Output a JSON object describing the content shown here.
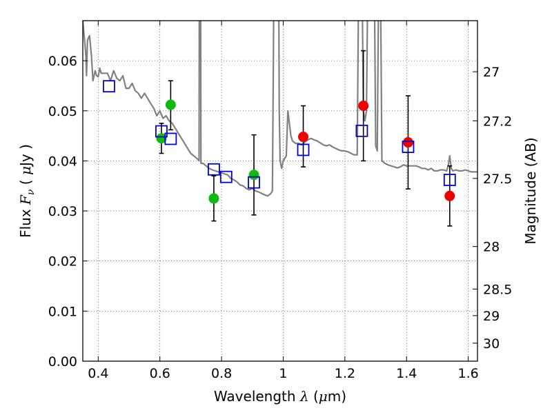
{
  "chart_data": {
    "type": "scatter",
    "xlabel_parts": [
      "Wavelength  ",
      "λ",
      " (",
      "μ",
      "m)"
    ],
    "ylabel_parts": [
      "Flux  ",
      "F",
      "ν",
      "  ( ",
      "μ",
      "Jy )"
    ],
    "y2label": "Magnitude (AB)",
    "xlim": [
      0.35,
      1.63
    ],
    "ylim": [
      0.0,
      0.068
    ],
    "grid": true,
    "x_ticks": [
      0.4,
      0.6,
      0.8,
      1.0,
      1.2,
      1.4,
      1.6
    ],
    "x_tick_labels": [
      "0.4",
      "0.6",
      "0.8",
      "1",
      "1.2",
      "1.4",
      "1.6"
    ],
    "y_ticks": [
      0.0,
      0.01,
      0.02,
      0.03,
      0.04,
      0.05,
      0.06
    ],
    "y_tick_labels": [
      "0.00",
      "0.01",
      "0.02",
      "0.03",
      "0.04",
      "0.05",
      "0.06"
    ],
    "y2_ticks": [
      {
        "flux": 0.0578,
        "label": "27"
      },
      {
        "flux": 0.048,
        "label": "27.2"
      },
      {
        "flux": 0.0365,
        "label": "27.5"
      },
      {
        "flux": 0.0229,
        "label": "28"
      },
      {
        "flux": 0.0144,
        "label": "28.5"
      },
      {
        "flux": 0.0091,
        "label": "29"
      },
      {
        "flux": 0.0036,
        "label": "30"
      }
    ],
    "colors": {
      "model": "#808080",
      "green_points": "#10bb10",
      "red_points": "#ee0000",
      "model_bands": "#0000cc",
      "error_bars": "#000000",
      "grid": "#555555"
    },
    "series": [
      {
        "kind": "line",
        "points": [
          [
            0.35,
            0.068
          ],
          [
            0.36,
            0.061
          ],
          [
            0.362,
            0.057
          ],
          [
            0.365,
            0.064
          ],
          [
            0.368,
            0.0645
          ],
          [
            0.372,
            0.065
          ],
          [
            0.378,
            0.061
          ],
          [
            0.383,
            0.056
          ],
          [
            0.39,
            0.058
          ],
          [
            0.395,
            0.057
          ],
          [
            0.4,
            0.0568
          ],
          [
            0.405,
            0.0585
          ],
          [
            0.41,
            0.0575
          ],
          [
            0.42,
            0.0575
          ],
          [
            0.43,
            0.0575
          ],
          [
            0.44,
            0.056
          ],
          [
            0.45,
            0.058
          ],
          [
            0.46,
            0.0565
          ],
          [
            0.47,
            0.056
          ],
          [
            0.48,
            0.057
          ],
          [
            0.49,
            0.0545
          ],
          [
            0.5,
            0.0545
          ],
          [
            0.51,
            0.0555
          ],
          [
            0.52,
            0.054
          ],
          [
            0.53,
            0.0535
          ],
          [
            0.54,
            0.0525
          ],
          [
            0.55,
            0.0535
          ],
          [
            0.56,
            0.0525
          ],
          [
            0.57,
            0.0515
          ],
          [
            0.58,
            0.0505
          ],
          [
            0.59,
            0.049
          ],
          [
            0.6,
            0.05
          ],
          [
            0.61,
            0.0485
          ],
          [
            0.62,
            0.049
          ],
          [
            0.63,
            0.048
          ],
          [
            0.64,
            0.0475
          ],
          [
            0.65,
            0.0465
          ],
          [
            0.66,
            0.0455
          ],
          [
            0.67,
            0.0445
          ],
          [
            0.68,
            0.0435
          ],
          [
            0.69,
            0.0425
          ],
          [
            0.7,
            0.0415
          ],
          [
            0.71,
            0.041
          ],
          [
            0.72,
            0.0405
          ],
          [
            0.727,
            0.04
          ],
          [
            0.728,
            0.08
          ],
          [
            0.732,
            0.08
          ],
          [
            0.733,
            0.0395
          ],
          [
            0.74,
            0.0395
          ],
          [
            0.75,
            0.039
          ],
          [
            0.76,
            0.0385
          ],
          [
            0.77,
            0.0382
          ],
          [
            0.78,
            0.038
          ],
          [
            0.79,
            0.0378
          ],
          [
            0.8,
            0.0376
          ],
          [
            0.81,
            0.0374
          ],
          [
            0.82,
            0.0372
          ],
          [
            0.83,
            0.0365
          ],
          [
            0.84,
            0.0362
          ],
          [
            0.85,
            0.0358
          ],
          [
            0.86,
            0.0352
          ],
          [
            0.87,
            0.035
          ],
          [
            0.88,
            0.0345
          ],
          [
            0.89,
            0.0342
          ],
          [
            0.9,
            0.0345
          ],
          [
            0.91,
            0.034
          ],
          [
            0.92,
            0.0338
          ],
          [
            0.93,
            0.0335
          ],
          [
            0.94,
            0.0332
          ],
          [
            0.95,
            0.033
          ],
          [
            0.96,
            0.0335
          ],
          [
            0.965,
            0.034
          ],
          [
            0.968,
            0.06
          ],
          [
            0.97,
            0.08
          ],
          [
            0.985,
            0.08
          ],
          [
            0.987,
            0.05
          ],
          [
            0.99,
            0.04
          ],
          [
            0.995,
            0.0385
          ],
          [
            1.0,
            0.04
          ],
          [
            1.01,
            0.041
          ],
          [
            1.015,
            0.05
          ],
          [
            1.02,
            0.0475
          ],
          [
            1.025,
            0.045
          ],
          [
            1.03,
            0.044
          ],
          [
            1.04,
            0.0435
          ],
          [
            1.05,
            0.0435
          ],
          [
            1.06,
            0.0432
          ],
          [
            1.07,
            0.0438
          ],
          [
            1.08,
            0.0442
          ],
          [
            1.09,
            0.0445
          ],
          [
            1.1,
            0.0442
          ],
          [
            1.11,
            0.044
          ],
          [
            1.12,
            0.0436
          ],
          [
            1.13,
            0.0432
          ],
          [
            1.14,
            0.043
          ],
          [
            1.15,
            0.0432
          ],
          [
            1.16,
            0.0428
          ],
          [
            1.17,
            0.0425
          ],
          [
            1.18,
            0.0422
          ],
          [
            1.19,
            0.042
          ],
          [
            1.2,
            0.042
          ],
          [
            1.21,
            0.0418
          ],
          [
            1.22,
            0.0415
          ],
          [
            1.23,
            0.0412
          ],
          [
            1.24,
            0.0412
          ],
          [
            1.245,
            0.08
          ],
          [
            1.255,
            0.08
          ],
          [
            1.26,
            0.05
          ],
          [
            1.265,
            0.048
          ],
          [
            1.27,
            0.05
          ],
          [
            1.275,
            0.08
          ],
          [
            1.295,
            0.08
          ],
          [
            1.3,
            0.043
          ],
          [
            1.305,
            0.042
          ],
          [
            1.31,
            0.08
          ],
          [
            1.315,
            0.08
          ],
          [
            1.32,
            0.04
          ],
          [
            1.33,
            0.0395
          ],
          [
            1.34,
            0.0392
          ],
          [
            1.35,
            0.039
          ],
          [
            1.36,
            0.0388
          ],
          [
            1.37,
            0.0386
          ],
          [
            1.38,
            0.0388
          ],
          [
            1.39,
            0.0392
          ],
          [
            1.4,
            0.039
          ],
          [
            1.41,
            0.039
          ],
          [
            1.42,
            0.039
          ],
          [
            1.43,
            0.039
          ],
          [
            1.44,
            0.0388
          ],
          [
            1.45,
            0.0385
          ],
          [
            1.46,
            0.0385
          ],
          [
            1.47,
            0.0382
          ],
          [
            1.48,
            0.0385
          ],
          [
            1.49,
            0.038
          ],
          [
            1.5,
            0.038
          ],
          [
            1.51,
            0.0382
          ],
          [
            1.52,
            0.0382
          ],
          [
            1.53,
            0.038
          ],
          [
            1.535,
            0.039
          ],
          [
            1.54,
            0.041
          ],
          [
            1.545,
            0.0385
          ],
          [
            1.55,
            0.038
          ],
          [
            1.56,
            0.0382
          ],
          [
            1.57,
            0.038
          ],
          [
            1.58,
            0.038
          ],
          [
            1.59,
            0.0382
          ],
          [
            1.6,
            0.038
          ],
          [
            1.61,
            0.0378
          ],
          [
            1.63,
            0.0378
          ]
        ]
      },
      {
        "kind": "points",
        "points": [
          {
            "x": 0.605,
            "y": 0.0445,
            "yerr_lo": 0.003,
            "yerr_hi": 0.003
          },
          {
            "x": 0.635,
            "y": 0.0512,
            "yerr_lo": 0.005,
            "yerr_hi": 0.0048
          },
          {
            "x": 0.775,
            "y": 0.0325,
            "yerr_lo": 0.0045,
            "yerr_hi": 0.0045
          },
          {
            "x": 0.905,
            "y": 0.0372,
            "yerr_lo": 0.008,
            "yerr_hi": 0.008
          }
        ]
      },
      {
        "kind": "points",
        "points": [
          {
            "x": 1.065,
            "y": 0.0448,
            "yerr_lo": 0.006,
            "yerr_hi": 0.0062
          },
          {
            "x": 1.26,
            "y": 0.051,
            "yerr_lo": 0.011,
            "yerr_hi": 0.011
          },
          {
            "x": 1.405,
            "y": 0.0437,
            "yerr_lo": 0.0093,
            "yerr_hi": 0.0093
          },
          {
            "x": 1.54,
            "y": 0.033,
            "yerr_lo": 0.006,
            "yerr_hi": 0.006
          }
        ]
      },
      {
        "kind": "squares",
        "points": [
          {
            "x": 0.435,
            "y": 0.0549
          },
          {
            "x": 0.605,
            "y": 0.0459
          },
          {
            "x": 0.635,
            "y": 0.0444
          },
          {
            "x": 0.775,
            "y": 0.0383
          },
          {
            "x": 0.815,
            "y": 0.0368
          },
          {
            "x": 0.905,
            "y": 0.0357
          },
          {
            "x": 1.065,
            "y": 0.0422
          },
          {
            "x": 1.255,
            "y": 0.046
          },
          {
            "x": 1.405,
            "y": 0.0428
          },
          {
            "x": 1.54,
            "y": 0.0362
          }
        ]
      }
    ]
  }
}
